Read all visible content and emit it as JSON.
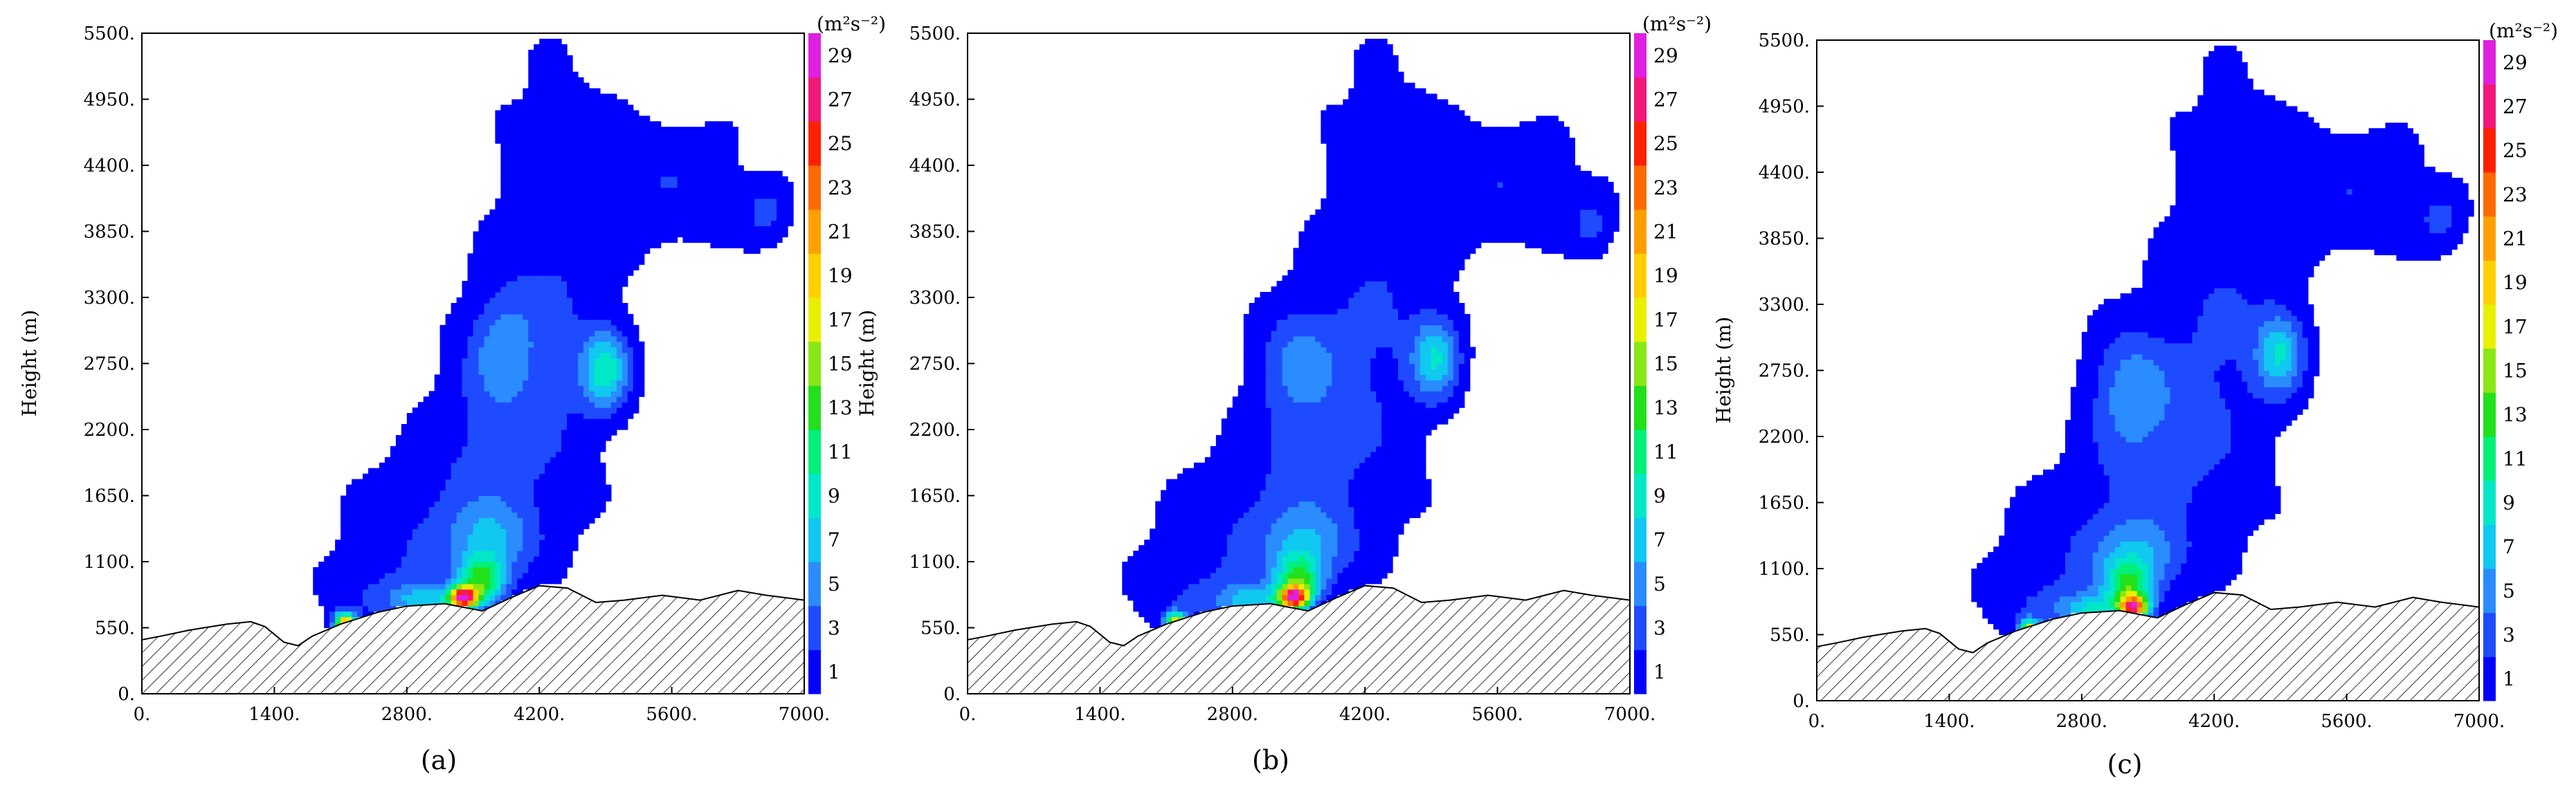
{
  "chart_data": [
    {
      "type": "contour",
      "panel_label": "(a)",
      "ylabel": "Height (m)",
      "xlim": [
        0,
        7000
      ],
      "ylim": [
        0,
        5500
      ],
      "x_ticks": [
        "0.",
        "1400.",
        "2800.",
        "4200.",
        "5600.",
        "7000."
      ],
      "y_ticks": [
        "0.",
        "550.",
        "1100.",
        "1650.",
        "2200.",
        "2750.",
        "3300.",
        "3850.",
        "4400.",
        "4950.",
        "5500."
      ],
      "colorbar": {
        "unit": "(m²s⁻²)",
        "levels": [
          1,
          3,
          5,
          7,
          9,
          11,
          13,
          15,
          17,
          19,
          21,
          23,
          25,
          27,
          29
        ],
        "colors": [
          "#0000ff",
          "#1f4bff",
          "#2a8cff",
          "#10c8f0",
          "#00e8c8",
          "#00f078",
          "#22e01a",
          "#8ae614",
          "#e8f000",
          "#ffd000",
          "#ffa000",
          "#ff6a00",
          "#ff2000",
          "#f01878",
          "#e020e0"
        ]
      },
      "terrain": [
        [
          0,
          450
        ],
        [
          200,
          480
        ],
        [
          500,
          530
        ],
        [
          900,
          580
        ],
        [
          1150,
          600
        ],
        [
          1300,
          560
        ],
        [
          1500,
          430
        ],
        [
          1650,
          400
        ],
        [
          1800,
          480
        ],
        [
          2100,
          580
        ],
        [
          2500,
          680
        ],
        [
          2800,
          730
        ],
        [
          3200,
          750
        ],
        [
          3600,
          690
        ],
        [
          3900,
          800
        ],
        [
          4200,
          900
        ],
        [
          4500,
          880
        ],
        [
          4800,
          760
        ],
        [
          5100,
          780
        ],
        [
          5500,
          820
        ],
        [
          5900,
          780
        ],
        [
          6300,
          860
        ],
        [
          6600,
          820
        ],
        [
          7000,
          780
        ]
      ],
      "field": [
        {
          "x": 4350,
          "y": 3400,
          "sx": 700,
          "sy": 1800,
          "v": 2.8
        },
        {
          "x": 5600,
          "y": 4250,
          "sx": 850,
          "sy": 550,
          "v": 2.6
        },
        {
          "x": 3700,
          "y": 2100,
          "sx": 750,
          "sy": 900,
          "v": 2.8
        },
        {
          "x": 2900,
          "y": 1300,
          "sx": 850,
          "sy": 650,
          "v": 2.4
        },
        {
          "x": 2400,
          "y": 800,
          "sx": 550,
          "sy": 300,
          "v": 2.0
        },
        {
          "x": 3800,
          "y": 2900,
          "sx": 350,
          "sy": 450,
          "v": 4.0
        },
        {
          "x": 4900,
          "y": 2700,
          "sx": 250,
          "sy": 330,
          "v": 9.0
        },
        {
          "x": 6600,
          "y": 4000,
          "sx": 250,
          "sy": 250,
          "v": 3.2
        },
        {
          "x": 3700,
          "y": 1300,
          "sx": 450,
          "sy": 300,
          "v": 5.0
        },
        {
          "x": 3600,
          "y": 950,
          "sx": 250,
          "sy": 200,
          "v": 12.0
        },
        {
          "x": 3400,
          "y": 800,
          "sx": 150,
          "sy": 90,
          "v": 26.0
        },
        {
          "x": 3000,
          "y": 780,
          "sx": 350,
          "sy": 130,
          "v": 7.0
        },
        {
          "x": 2150,
          "y": 580,
          "sx": 110,
          "sy": 90,
          "v": 22.0
        }
      ]
    },
    {
      "type": "contour",
      "panel_label": "(b)",
      "ylabel": "Height (m)",
      "xlim": [
        0,
        7000
      ],
      "ylim": [
        0,
        5500
      ],
      "x_ticks": [
        "0.",
        "1400.",
        "2800.",
        "4200.",
        "5600.",
        "7000."
      ],
      "y_ticks": [
        "0.",
        "550.",
        "1100.",
        "1650.",
        "2200.",
        "2750.",
        "3300.",
        "3850.",
        "4400.",
        "4950.",
        "5500."
      ],
      "colorbar": {
        "unit": "(m²s⁻²)",
        "levels": [
          1,
          3,
          5,
          7,
          9,
          11,
          13,
          15,
          17,
          19,
          21,
          23,
          25,
          27,
          29
        ],
        "colors": [
          "#0000ff",
          "#1f4bff",
          "#2a8cff",
          "#10c8f0",
          "#00e8c8",
          "#00f078",
          "#22e01a",
          "#8ae614",
          "#e8f000",
          "#ffd000",
          "#ffa000",
          "#ff6a00",
          "#ff2000",
          "#f01878",
          "#e020e0"
        ]
      },
      "terrain": [
        [
          0,
          450
        ],
        [
          200,
          480
        ],
        [
          500,
          530
        ],
        [
          900,
          580
        ],
        [
          1150,
          600
        ],
        [
          1300,
          560
        ],
        [
          1500,
          430
        ],
        [
          1650,
          400
        ],
        [
          1800,
          480
        ],
        [
          2100,
          580
        ],
        [
          2500,
          680
        ],
        [
          2800,
          730
        ],
        [
          3200,
          750
        ],
        [
          3600,
          690
        ],
        [
          3900,
          800
        ],
        [
          4200,
          900
        ],
        [
          4500,
          880
        ],
        [
          4800,
          760
        ],
        [
          5100,
          780
        ],
        [
          5500,
          820
        ],
        [
          5900,
          780
        ],
        [
          6300,
          860
        ],
        [
          6600,
          820
        ],
        [
          7000,
          780
        ]
      ],
      "field": [
        {
          "x": 4350,
          "y": 3400,
          "sx": 700,
          "sy": 1800,
          "v": 2.8
        },
        {
          "x": 5700,
          "y": 4250,
          "sx": 850,
          "sy": 550,
          "v": 2.6
        },
        {
          "x": 3600,
          "y": 2100,
          "sx": 750,
          "sy": 900,
          "v": 2.8
        },
        {
          "x": 2800,
          "y": 1300,
          "sx": 900,
          "sy": 650,
          "v": 2.4
        },
        {
          "x": 2300,
          "y": 800,
          "sx": 600,
          "sy": 300,
          "v": 2.0
        },
        {
          "x": 3500,
          "y": 2800,
          "sx": 400,
          "sy": 450,
          "v": 4.0
        },
        {
          "x": 4950,
          "y": 2800,
          "sx": 250,
          "sy": 330,
          "v": 8.0
        },
        {
          "x": 6600,
          "y": 3900,
          "sx": 250,
          "sy": 250,
          "v": 3.0
        },
        {
          "x": 3600,
          "y": 1250,
          "sx": 450,
          "sy": 300,
          "v": 5.0
        },
        {
          "x": 3500,
          "y": 950,
          "sx": 250,
          "sy": 200,
          "v": 11.0
        },
        {
          "x": 3450,
          "y": 800,
          "sx": 150,
          "sy": 90,
          "v": 24.0
        },
        {
          "x": 3000,
          "y": 780,
          "sx": 350,
          "sy": 130,
          "v": 7.0
        },
        {
          "x": 2200,
          "y": 580,
          "sx": 110,
          "sy": 90,
          "v": 20.0
        }
      ]
    },
    {
      "type": "contour",
      "panel_label": "(c)",
      "ylabel": "Height (m)",
      "xlim": [
        0,
        7000
      ],
      "ylim": [
        0,
        5500
      ],
      "x_ticks": [
        "0.",
        "1400.",
        "2800.",
        "4200.",
        "5600.",
        "7000."
      ],
      "y_ticks": [
        "0.",
        "550.",
        "1100.",
        "1650.",
        "2200.",
        "2750.",
        "3300.",
        "3850.",
        "4400.",
        "4950.",
        "5500."
      ],
      "colorbar": {
        "unit": "(m²s⁻²)",
        "levels": [
          1,
          3,
          5,
          7,
          9,
          11,
          13,
          15,
          17,
          19,
          21,
          23,
          25,
          27,
          29
        ],
        "colors": [
          "#0000ff",
          "#1f4bff",
          "#2a8cff",
          "#10c8f0",
          "#00e8c8",
          "#00f078",
          "#22e01a",
          "#8ae614",
          "#e8f000",
          "#ffd000",
          "#ffa000",
          "#ff6a00",
          "#ff2000",
          "#f01878",
          "#e020e0"
        ]
      },
      "terrain": [
        [
          0,
          450
        ],
        [
          200,
          480
        ],
        [
          500,
          530
        ],
        [
          900,
          580
        ],
        [
          1150,
          600
        ],
        [
          1300,
          560
        ],
        [
          1500,
          430
        ],
        [
          1650,
          400
        ],
        [
          1800,
          480
        ],
        [
          2100,
          580
        ],
        [
          2500,
          680
        ],
        [
          2800,
          730
        ],
        [
          3200,
          750
        ],
        [
          3600,
          690
        ],
        [
          3900,
          800
        ],
        [
          4200,
          900
        ],
        [
          4500,
          880
        ],
        [
          4800,
          760
        ],
        [
          5100,
          780
        ],
        [
          5500,
          820
        ],
        [
          5900,
          780
        ],
        [
          6300,
          860
        ],
        [
          6600,
          820
        ],
        [
          7000,
          780
        ]
      ],
      "field": [
        {
          "x": 4350,
          "y": 3400,
          "sx": 700,
          "sy": 1800,
          "v": 2.8
        },
        {
          "x": 5700,
          "y": 4250,
          "sx": 850,
          "sy": 550,
          "v": 2.6
        },
        {
          "x": 3600,
          "y": 2150,
          "sx": 750,
          "sy": 900,
          "v": 2.8
        },
        {
          "x": 2800,
          "y": 1300,
          "sx": 900,
          "sy": 650,
          "v": 2.4
        },
        {
          "x": 2300,
          "y": 800,
          "sx": 600,
          "sy": 300,
          "v": 2.0
        },
        {
          "x": 3300,
          "y": 2600,
          "sx": 400,
          "sy": 500,
          "v": 4.5
        },
        {
          "x": 4900,
          "y": 2900,
          "sx": 250,
          "sy": 330,
          "v": 8.0
        },
        {
          "x": 6600,
          "y": 4000,
          "sx": 250,
          "sy": 250,
          "v": 3.0
        },
        {
          "x": 3400,
          "y": 1200,
          "sx": 450,
          "sy": 300,
          "v": 5.0
        },
        {
          "x": 3300,
          "y": 950,
          "sx": 250,
          "sy": 200,
          "v": 10.0
        },
        {
          "x": 3350,
          "y": 780,
          "sx": 150,
          "sy": 90,
          "v": 22.0
        },
        {
          "x": 2900,
          "y": 760,
          "sx": 350,
          "sy": 130,
          "v": 7.0
        },
        {
          "x": 2250,
          "y": 580,
          "sx": 110,
          "sy": 90,
          "v": 18.0
        }
      ]
    }
  ]
}
